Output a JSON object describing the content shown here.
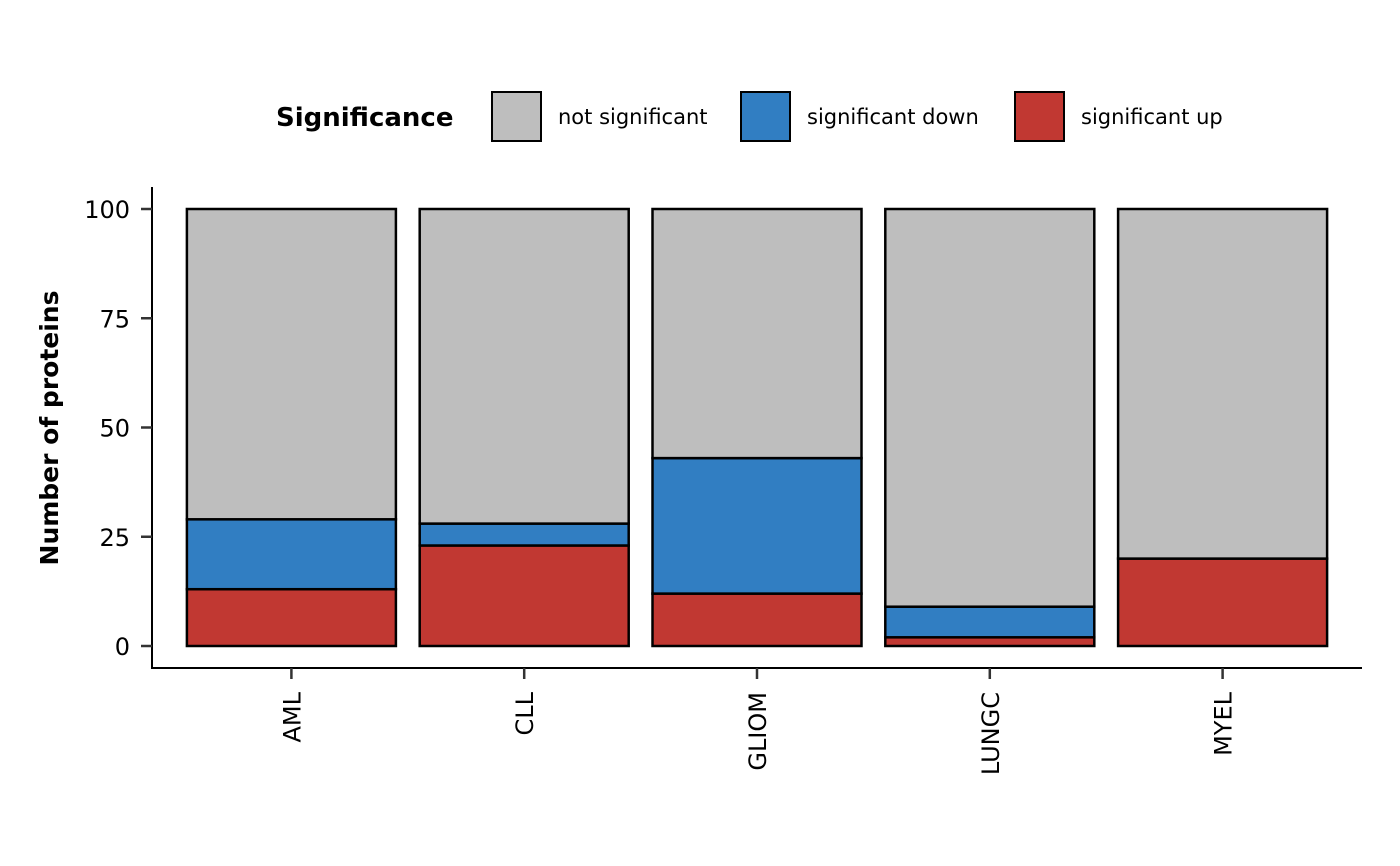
{
  "chart_data": {
    "type": "bar",
    "stacked": true,
    "ylabel": "Number of proteins",
    "xlabel": "",
    "ylim": [
      0,
      100
    ],
    "yticks": [
      "0",
      "25",
      "50",
      "75",
      "100"
    ],
    "categories": [
      "AML",
      "CLL",
      "GLIOM",
      "LUNGC",
      "MYEL"
    ],
    "legend": {
      "title": "Significance",
      "position": "top"
    },
    "series": [
      {
        "name": "significant up",
        "color": "#C13832",
        "values": [
          13,
          23,
          12,
          2,
          20
        ]
      },
      {
        "name": "significant down",
        "color": "#317EC2",
        "values": [
          16,
          5,
          31,
          7,
          0
        ]
      },
      {
        "name": "not significant",
        "color": "#BEBEBE",
        "values": [
          71,
          72,
          57,
          91,
          80
        ]
      }
    ],
    "legend_order": [
      "not significant",
      "significant down",
      "significant up"
    ],
    "grid": false
  }
}
